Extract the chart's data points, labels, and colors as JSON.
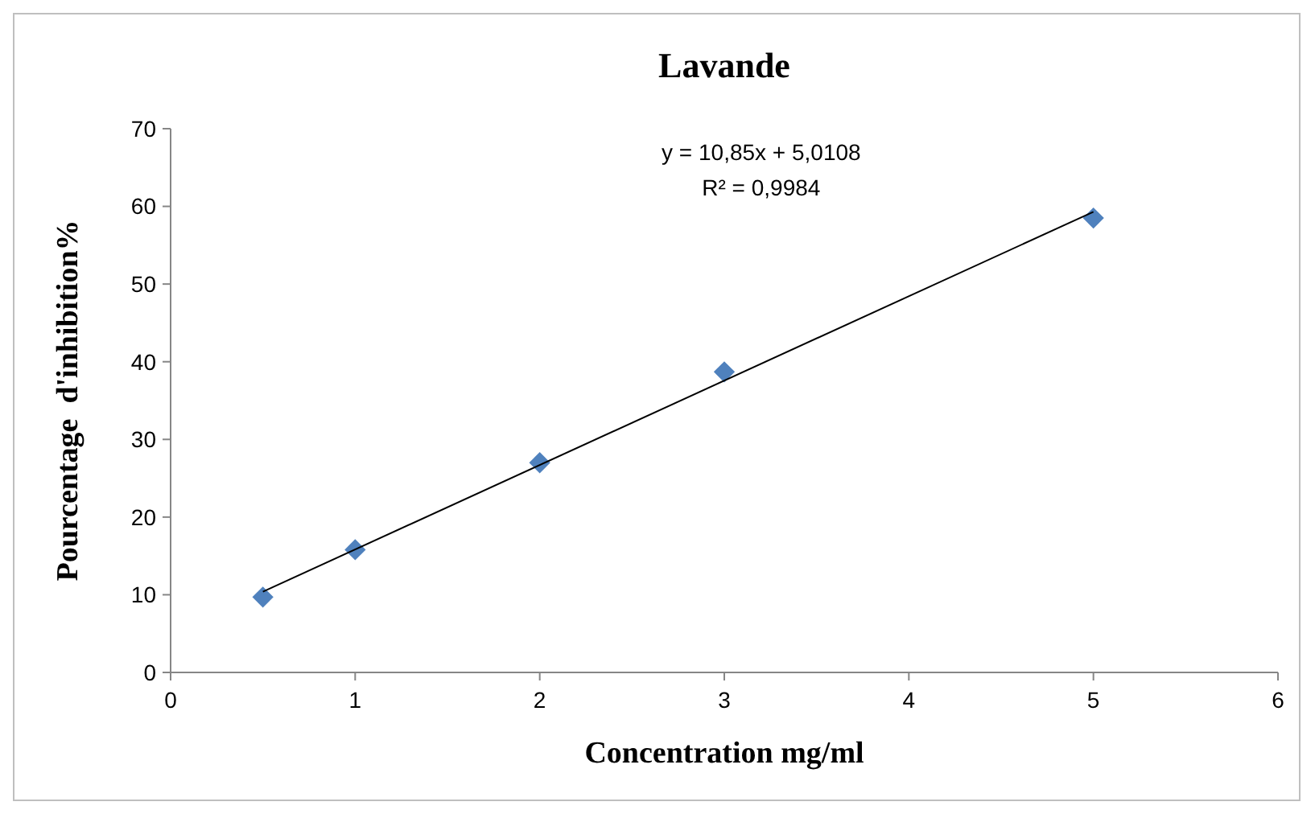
{
  "chart_data": {
    "type": "scatter",
    "title": "Lavande",
    "xlabel": "Concentration mg/ml",
    "ylabel": "Pourcentage  d'inhibition%",
    "x": [
      0.5,
      1,
      2,
      3,
      5
    ],
    "series": [
      {
        "color": "#4f81bd",
        "marker": "diamond",
        "values": [
          9.7,
          15.8,
          27,
          38.7,
          58.5
        ]
      },
      {
        "type": "line",
        "color": "#000000",
        "x": [
          0.5,
          5
        ],
        "values": [
          10.4,
          59.3
        ],
        "marker": "none",
        "line_style": "solid"
      }
    ],
    "xlim": [
      0,
      6
    ],
    "xticks": [
      0,
      1,
      2,
      3,
      4,
      5,
      6
    ],
    "ylim": [
      0,
      70
    ],
    "yticks": [
      0,
      10,
      20,
      30,
      40,
      50,
      60,
      70
    ],
    "grid": false,
    "annotations": [
      "y = 10,85x + 5,0108",
      "R² = 0,9984"
    ]
  }
}
